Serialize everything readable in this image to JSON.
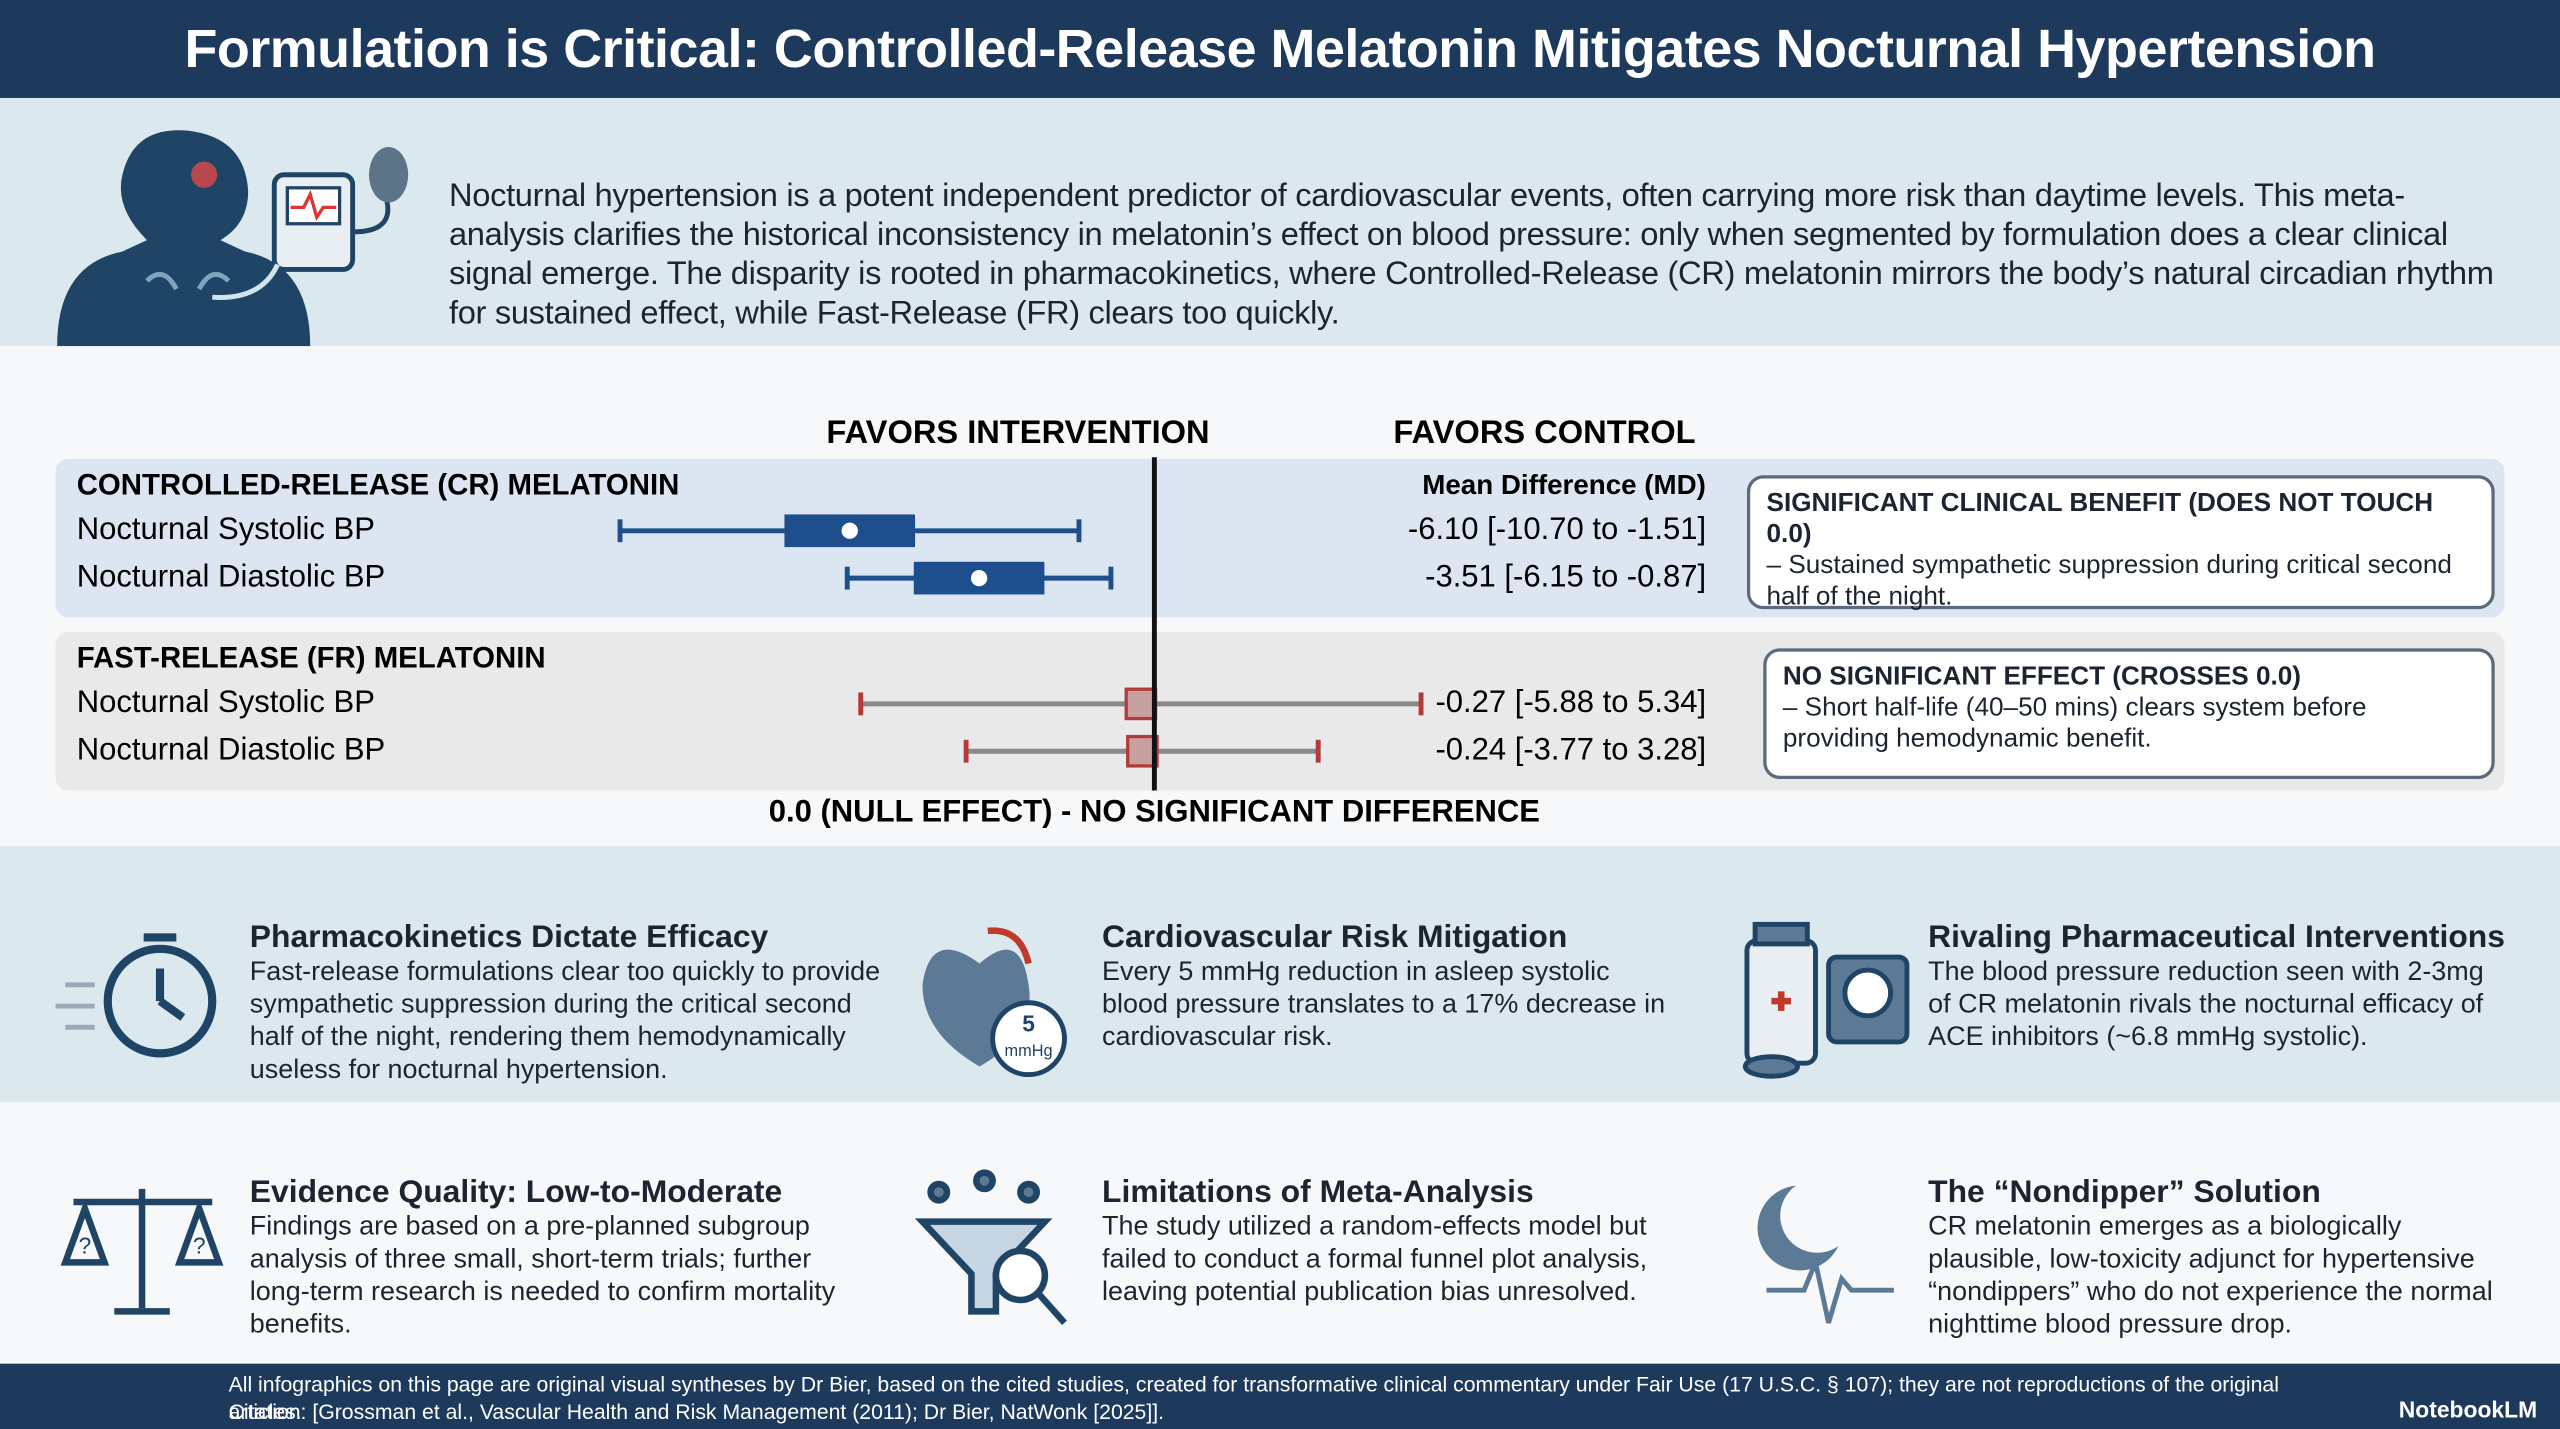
{
  "header": {
    "title": "Formulation is Critical: Controlled-Release Melatonin Mitigates Nocturnal Hypertension"
  },
  "intro": {
    "text": "Nocturnal hypertension is a potent independent predictor of cardiovascular events, often carrying more risk than daytime levels. This meta-analysis clarifies the historical inconsistency in melatonin’s effect on blood pressure: only when segmented by formulation does a clear clinical signal emerge. The disparity is rooted in pharmacokinetics, where Controlled-Release (CR) melatonin mirrors the body’s natural circadian rhythm for sustained effect, while Fast-Release (FR) clears too quickly."
  },
  "chart_data": {
    "type": "forest",
    "left_label": "FAVORS INTERVENTION",
    "right_label": "FAVORS CONTROL",
    "column_header": "Mean Difference (MD)",
    "null_label": "0.0 (NULL EFFECT) - NO SIGNIFICANT DIFFERENCE",
    "xlim": [
      -12,
      5
    ],
    "groups": [
      {
        "name": "CONTROLLED-RELEASE (CR) MELATONIN",
        "color": "#1f4e8c",
        "background": "#dce6f2",
        "marker": "wide",
        "rows": [
          {
            "label": "Nocturnal Systolic BP",
            "md": -6.1,
            "lo": -10.7,
            "hi": -1.51,
            "value_label": "-6.10 [-10.70 to -1.51]"
          },
          {
            "label": "Nocturnal Diastolic BP",
            "md": -3.51,
            "lo": -6.15,
            "hi": -0.87,
            "value_label": "-3.51 [-6.15 to -0.87]"
          }
        ],
        "callout": {
          "title": "SIGNIFICANT CLINICAL BENEFIT (DOES NOT TOUCH 0.0)",
          "text": "– Sustained sympathetic suppression during critical second half of the night."
        }
      },
      {
        "name": "FAST-RELEASE (FR) MELATONIN",
        "color": "#b23a3a",
        "background": "#e9e9e9",
        "marker": "square",
        "rows": [
          {
            "label": "Nocturnal Systolic BP",
            "md": -0.27,
            "lo": -5.88,
            "hi": 5.34,
            "value_label": "-0.27 [-5.88 to 5.34]"
          },
          {
            "label": "Nocturnal Diastolic BP",
            "md": -0.24,
            "lo": -3.77,
            "hi": 3.28,
            "value_label": "-0.24 [-3.77 to 3.28]"
          }
        ],
        "callout": {
          "title": "NO SIGNIFICANT EFFECT (CROSSES 0.0)",
          "text": "– Short half-life (40–50 mins) clears system before providing hemodynamic benefit."
        }
      }
    ]
  },
  "findings": [
    {
      "title": "Pharmacokinetics Dictate Efficacy",
      "text": "Fast-release formulations clear too quickly to provide sympathetic suppression during the critical second half of the night, rendering them hemodynamically useless for nocturnal hypertension."
    },
    {
      "title": "Cardiovascular Risk Mitigation",
      "text": "Every 5 mmHg reduction in asleep systolic blood pressure translates to a 17% decrease in cardiovascular risk.",
      "icon_number": "5",
      "icon_unit": "mmHg"
    },
    {
      "title": "Rivaling Pharmaceutical Interventions",
      "text": "The blood pressure reduction seen with 2-3mg of CR melatonin rivals the nocturnal efficacy of ACE inhibitors (~6.8 mmHg systolic)."
    },
    {
      "title": "Evidence Quality: Low-to-Moderate",
      "text": "Findings are based on a pre-planned subgroup analysis of three small, short-term trials; further long-term research is needed to confirm mortality benefits.",
      "icon_mark": "?"
    },
    {
      "title": "Limitations of Meta-Analysis",
      "text": "The study utilized a random-effects model but failed to conduct a formal funnel plot analysis, leaving potential publication bias unresolved."
    },
    {
      "title": "The “Nondipper” Solution",
      "text": "CR melatonin emerges as a biologically plausible, low-toxicity adjunct for hypertensive “nondippers” who do not experience the normal nighttime blood pressure drop."
    }
  ],
  "footer": {
    "disclaimer": "All infographics on this page are original visual syntheses by Dr Bier, based on the cited studies, created for transformative clinical commentary under Fair Use (17 U.S.C. § 107); they are not reproductions of the original articles.",
    "citation": "Citation: [Grossman et al., Vascular Health and Risk Management (2011); Dr Bier, NatWonk [2025]].",
    "brand": "NotebookLM"
  }
}
